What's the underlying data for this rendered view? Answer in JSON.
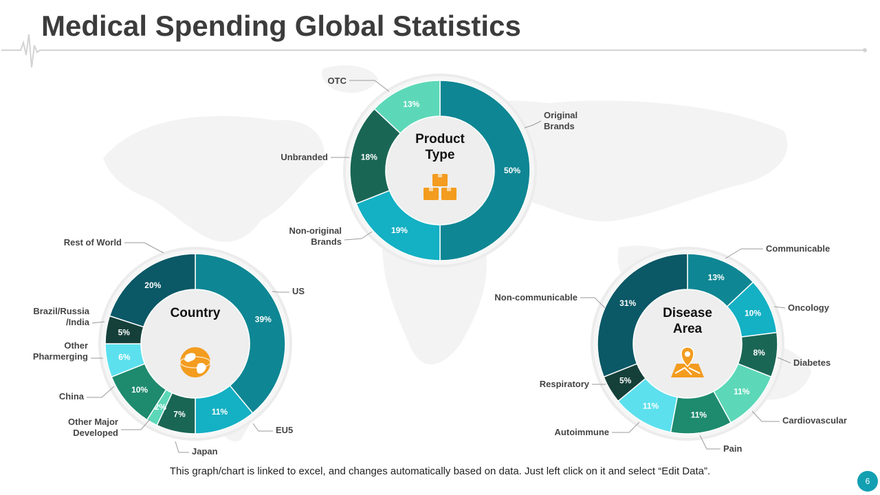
{
  "slide": {
    "title": "Medical Spending Global Statistics",
    "footer": "This graph/chart is linked to excel, and changes automatically  based on data. Just left click on it and select “Edit Data”.",
    "page_number": "6"
  },
  "chart_data": [
    {
      "type": "pie",
      "id": "product",
      "center_label": [
        "Product",
        "Type"
      ],
      "icon": "boxes-icon",
      "slices": [
        {
          "label": "Original Brands",
          "value": 50,
          "value_label": "50%",
          "label_lines": [
            "Original",
            "Brands"
          ],
          "color": "#0e8693"
        },
        {
          "label": "Non-original Brands",
          "value": 19,
          "value_label": "19%",
          "label_lines": [
            "Non-original",
            "Brands"
          ],
          "color": "#14b0c4"
        },
        {
          "label": "Unbranded",
          "value": 18,
          "value_label": "18%",
          "label_lines": [
            "Unbranded"
          ],
          "color": "#1a6655"
        },
        {
          "label": "OTC",
          "value": 13,
          "value_label": "13%",
          "label_lines": [
            "OTC"
          ],
          "color": "#5cd8b8"
        }
      ]
    },
    {
      "type": "pie",
      "id": "country",
      "center_label": [
        "Country"
      ],
      "icon": "globe-icon",
      "slices": [
        {
          "label": "US",
          "value": 39,
          "value_label": "39%",
          "label_lines": [
            "US"
          ],
          "color": "#0e8693"
        },
        {
          "label": "EU5",
          "value": 11,
          "value_label": "11%",
          "label_lines": [
            "EU5"
          ],
          "color": "#14b0c4"
        },
        {
          "label": "Japan",
          "value": 7,
          "value_label": "7%",
          "label_lines": [
            "Japan"
          ],
          "color": "#1a6655"
        },
        {
          "label": "Other Major Developed",
          "value": 2,
          "value_label": "2%",
          "label_lines": [
            "Other Major",
            "Developed"
          ],
          "color": "#5cd8b8"
        },
        {
          "label": "China",
          "value": 10,
          "value_label": "10%",
          "label_lines": [
            "China"
          ],
          "color": "#1e8a6e"
        },
        {
          "label": "Other Pharmerging",
          "value": 6,
          "value_label": "6%",
          "label_lines": [
            "Other",
            "Pharmerging"
          ],
          "color": "#5ce0ee"
        },
        {
          "label": "Brazil/Russia/India",
          "value": 5,
          "value_label": "5%",
          "label_lines": [
            "Brazil/Russia",
            "/India"
          ],
          "color": "#15403a"
        },
        {
          "label": "Rest of World",
          "value": 20,
          "value_label": "20%",
          "label_lines": [
            "Rest of World"
          ],
          "color": "#0b5866"
        }
      ]
    },
    {
      "type": "pie",
      "id": "disease",
      "center_label": [
        "Disease",
        "Area"
      ],
      "icon": "map-pin-icon",
      "slices": [
        {
          "label": "Communicable",
          "value": 13,
          "value_label": "13%",
          "label_lines": [
            "Communicable"
          ],
          "color": "#0e8693"
        },
        {
          "label": "Oncology",
          "value": 10,
          "value_label": "10%",
          "label_lines": [
            "Oncology"
          ],
          "color": "#14b0c4"
        },
        {
          "label": "Diabetes",
          "value": 8,
          "value_label": "8%",
          "label_lines": [
            "Diabetes"
          ],
          "color": "#1a6655"
        },
        {
          "label": "Cardiovascular",
          "value": 11,
          "value_label": "11%",
          "label_lines": [
            "Cardiovascular"
          ],
          "color": "#5cd8b8"
        },
        {
          "label": "Pain",
          "value": 11,
          "value_label": "11%",
          "label_lines": [
            "Pain"
          ],
          "color": "#1e8a6e"
        },
        {
          "label": "Autoimmune",
          "value": 11,
          "value_label": "11%",
          "label_lines": [
            "Autoimmune"
          ],
          "color": "#5ce0ee"
        },
        {
          "label": "Respiratory",
          "value": 5,
          "value_label": "5%",
          "label_lines": [
            "Respiratory"
          ],
          "color": "#15403a"
        },
        {
          "label": "Non-communicable",
          "value": 31,
          "value_label": "31%",
          "label_lines": [
            "Non-communicable"
          ],
          "color": "#0b5866"
        }
      ]
    }
  ],
  "colors": {
    "title": "#3c3c3c",
    "accent": "#f39c1f",
    "page_badge": "#139fb2",
    "ring_background": "#ececec",
    "map": "#f4f4f4"
  }
}
